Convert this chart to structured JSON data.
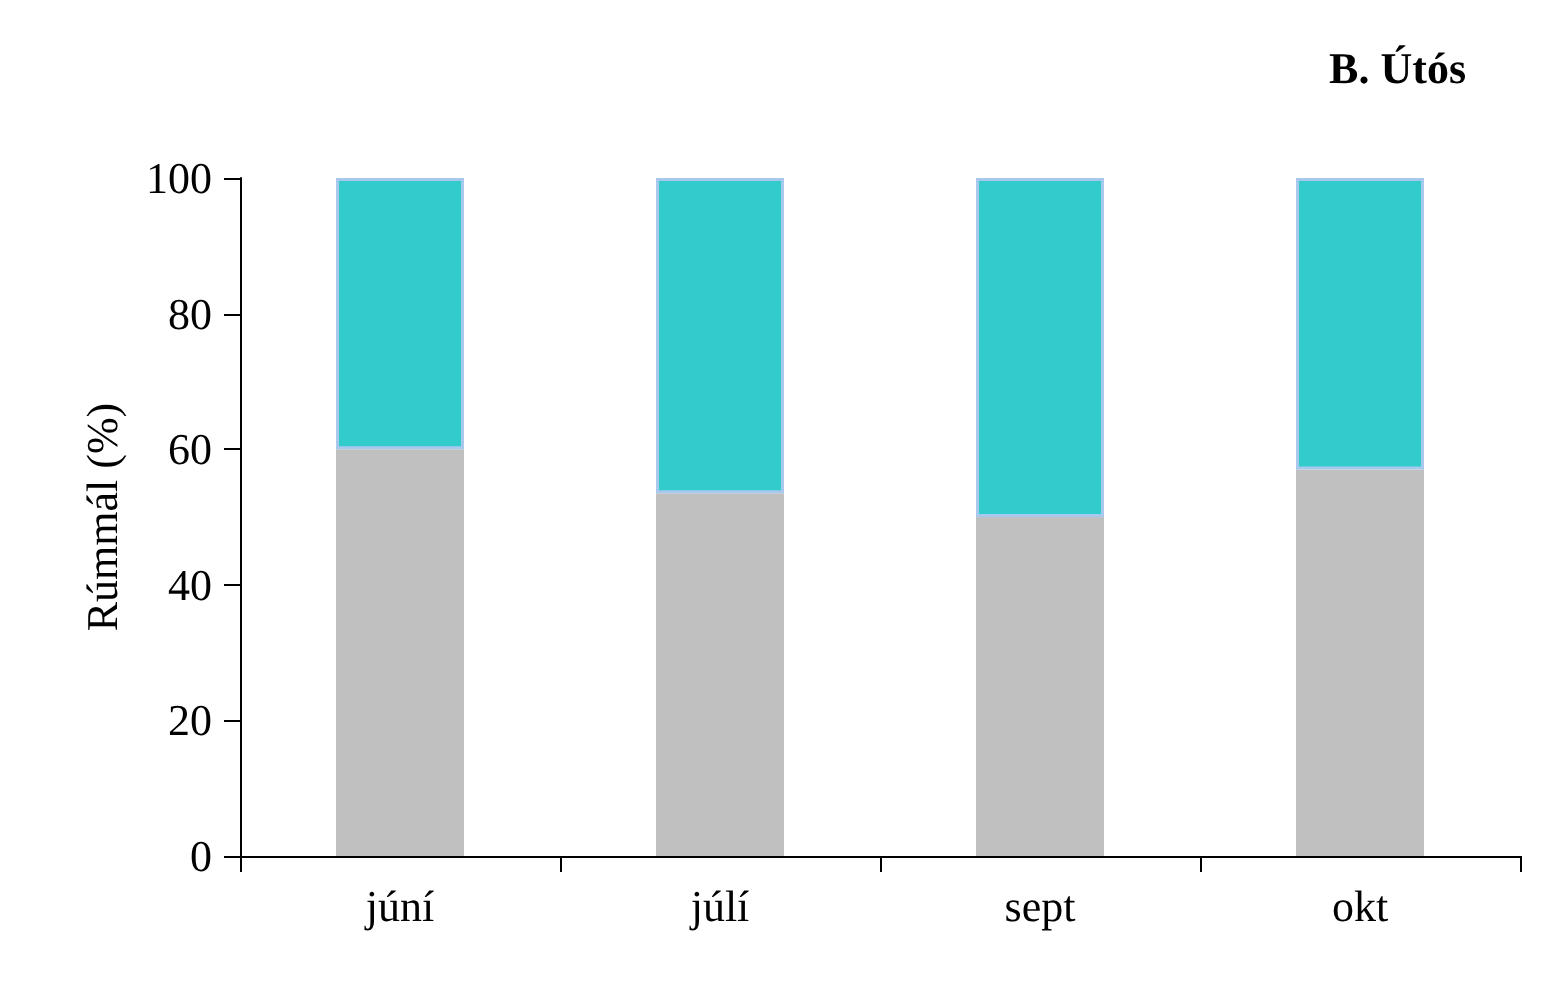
{
  "chart_data": {
    "type": "bar",
    "title": "B. Útós",
    "ylabel": "Rúmmál (%)",
    "categories": [
      "júní",
      "júlí",
      "sept",
      "okt"
    ],
    "stacked": true,
    "series": [
      {
        "color": "#c0c0c0",
        "values": [
          60,
          53.5,
          50,
          57
        ]
      },
      {
        "color": "#33cccc",
        "values": [
          40,
          46.5,
          50,
          43
        ]
      }
    ],
    "ylim": [
      0,
      100
    ],
    "yticks": [
      0,
      20,
      40,
      60,
      80,
      100
    ],
    "grid": false
  }
}
